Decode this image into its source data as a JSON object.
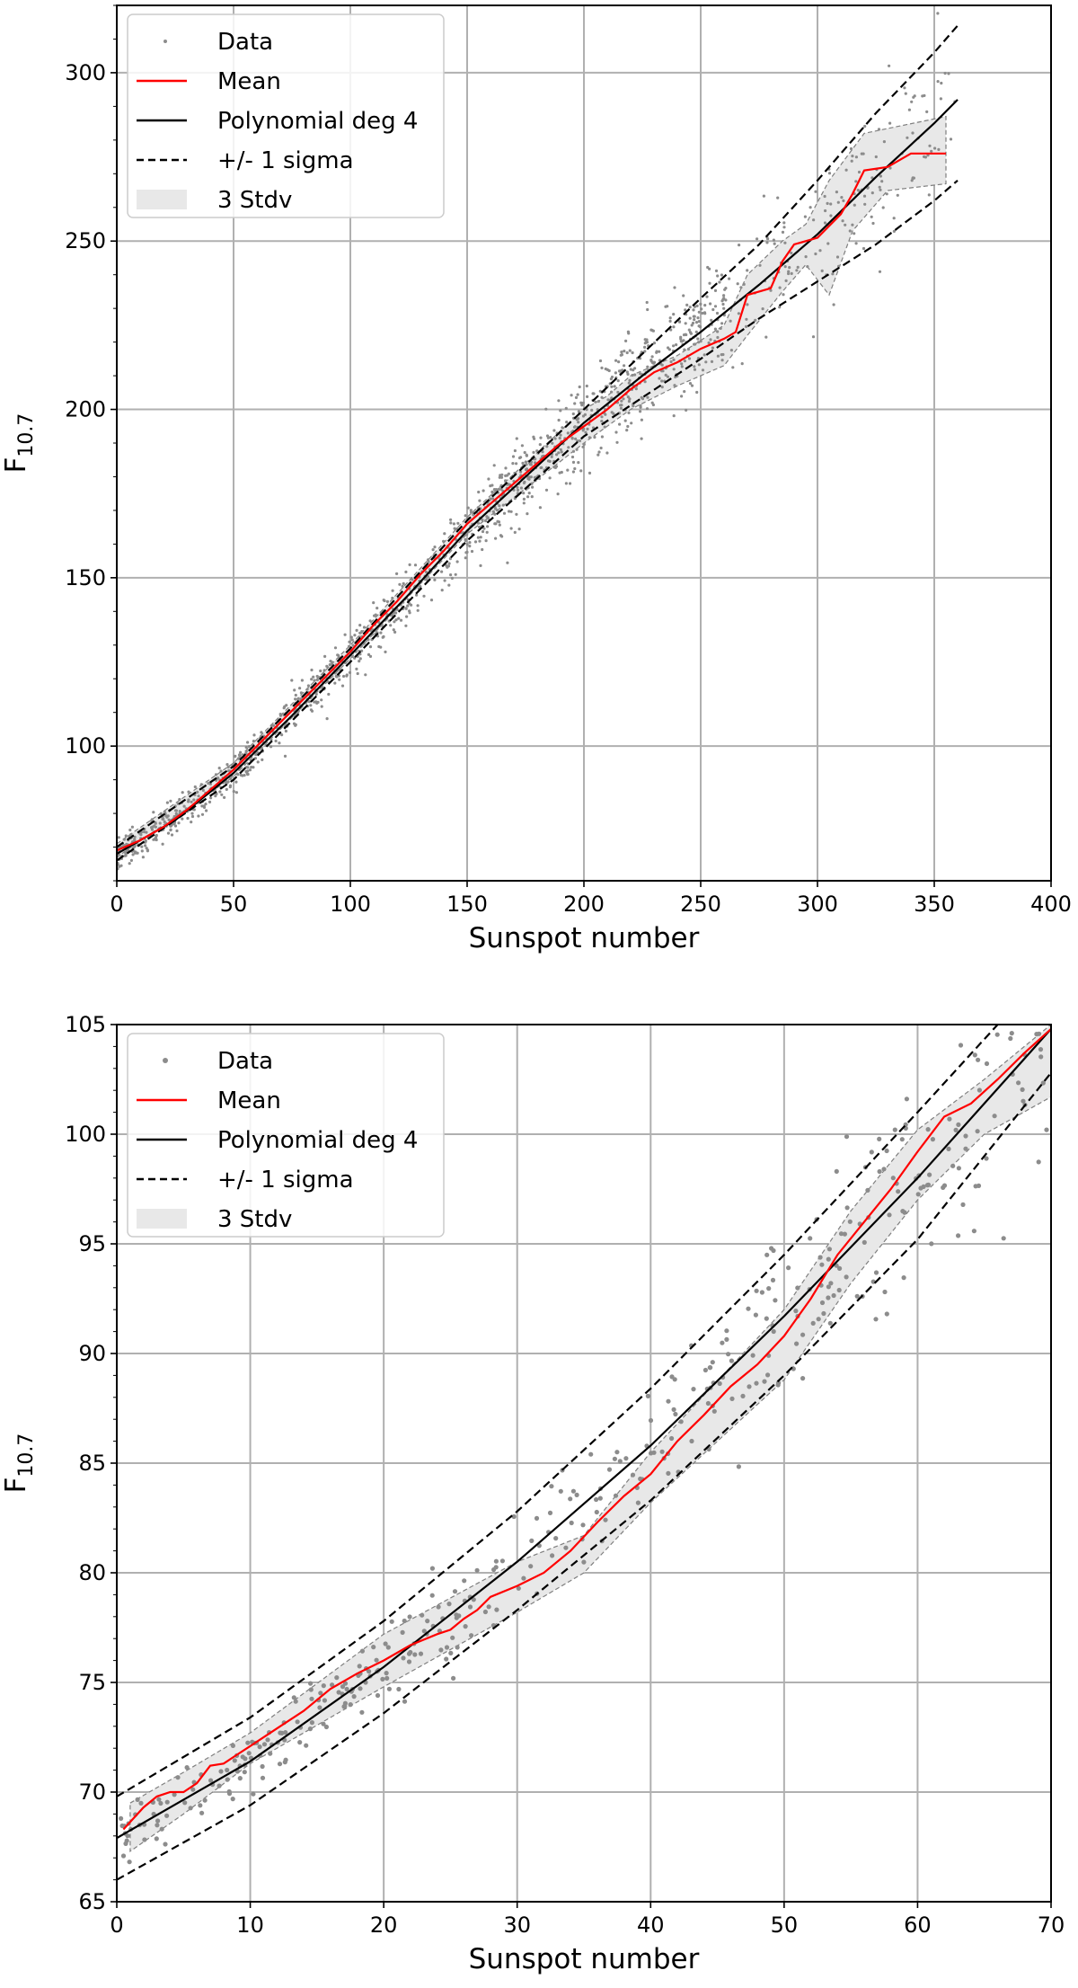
{
  "chart_data": [
    {
      "type": "scatter",
      "xlabel": "Sunspot number",
      "ylabel": "F",
      "ylabel_sub": "10.7",
      "xlim": [
        0,
        400
      ],
      "ylim": [
        60,
        320
      ],
      "xticks": [
        0,
        50,
        100,
        150,
        200,
        250,
        300,
        350,
        400
      ],
      "yticks": [
        100,
        150,
        200,
        250,
        300
      ],
      "grid": true,
      "legend_position": "top-left",
      "legend": [
        "Data",
        "Mean",
        "Polynomial deg 4",
        "+/- 1 sigma",
        "3 Stdv"
      ],
      "colors": {
        "data": "#8c8c8c",
        "mean": "#ff0000",
        "poly": "#000000",
        "sigma": "#000000",
        "band": "#e8e8e8"
      },
      "series": [
        {
          "name": "Mean",
          "points": [
            [
              0,
              69
            ],
            [
              10,
              72
            ],
            [
              20,
              76
            ],
            [
              30,
              81
            ],
            [
              40,
              87
            ],
            [
              50,
              93
            ],
            [
              60,
              100
            ],
            [
              70,
              107
            ],
            [
              80,
              114
            ],
            [
              90,
              121
            ],
            [
              100,
              128
            ],
            [
              110,
              136
            ],
            [
              120,
              143
            ],
            [
              130,
              151
            ],
            [
              140,
              158
            ],
            [
              150,
              166
            ],
            [
              160,
              172
            ],
            [
              170,
              178
            ],
            [
              180,
              184
            ],
            [
              190,
              190
            ],
            [
              200,
              195
            ],
            [
              210,
              200
            ],
            [
              220,
              206
            ],
            [
              230,
              211
            ],
            [
              240,
              214
            ],
            [
              250,
              218
            ],
            [
              260,
              221
            ],
            [
              265,
              223
            ],
            [
              270,
              234
            ],
            [
              280,
              236
            ],
            [
              285,
              244
            ],
            [
              290,
              249
            ],
            [
              300,
              251
            ],
            [
              310,
              258
            ],
            [
              315,
              264
            ],
            [
              320,
              271
            ],
            [
              330,
              272
            ],
            [
              340,
              276
            ],
            [
              355,
              276
            ]
          ]
        },
        {
          "name": "Polynomial deg 4",
          "points": [
            [
              0,
              68
            ],
            [
              25,
              78
            ],
            [
              50,
              92
            ],
            [
              75,
              109
            ],
            [
              100,
              127
            ],
            [
              125,
              145
            ],
            [
              150,
              164
            ],
            [
              175,
              180
            ],
            [
              200,
              196
            ],
            [
              225,
              210
            ],
            [
              250,
              223
            ],
            [
              275,
              237
            ],
            [
              300,
              252
            ],
            [
              325,
              269
            ],
            [
              350,
              285
            ],
            [
              360,
              292
            ]
          ]
        },
        {
          "name": "+/- 1 sigma (upper)",
          "points": [
            [
              0,
              70
            ],
            [
              50,
              94
            ],
            [
              100,
              129
            ],
            [
              150,
              167
            ],
            [
              200,
              200
            ],
            [
              250,
              233
            ],
            [
              275,
              249
            ],
            [
              300,
              268
            ],
            [
              325,
              288
            ],
            [
              350,
              306
            ],
            [
              360,
              314
            ]
          ]
        },
        {
          "name": "+/- 1 sigma (lower)",
          "points": [
            [
              0,
              66
            ],
            [
              50,
              90
            ],
            [
              100,
              125
            ],
            [
              150,
              161
            ],
            [
              200,
              192
            ],
            [
              250,
              215
            ],
            [
              275,
              227
            ],
            [
              300,
              238
            ],
            [
              325,
              249
            ],
            [
              350,
              262
            ],
            [
              360,
              268
            ]
          ]
        },
        {
          "name": "3 Stdv (upper)",
          "points": [
            [
              0,
              71
            ],
            [
              50,
              95
            ],
            [
              100,
              130
            ],
            [
              150,
              168
            ],
            [
              200,
              200
            ],
            [
              210,
              204
            ],
            [
              220,
              210
            ],
            [
              240,
              216
            ],
            [
              260,
              225
            ],
            [
              270,
              240
            ],
            [
              285,
              250
            ],
            [
              295,
              255
            ],
            [
              305,
              268
            ],
            [
              320,
              282
            ],
            [
              355,
              287
            ]
          ]
        },
        {
          "name": "3 Stdv (lower)",
          "points": [
            [
              0,
              67
            ],
            [
              50,
              91
            ],
            [
              100,
              126
            ],
            [
              150,
              163
            ],
            [
              200,
              190
            ],
            [
              220,
              200
            ],
            [
              240,
              207
            ],
            [
              260,
              213
            ],
            [
              270,
              222
            ],
            [
              285,
              235
            ],
            [
              295,
              243
            ],
            [
              305,
              234
            ],
            [
              315,
              253
            ],
            [
              330,
              265
            ],
            [
              355,
              267
            ]
          ]
        }
      ],
      "data_cloud": {
        "x_max": 360,
        "spread_low_x": 5,
        "spread_high_x": 25
      }
    },
    {
      "type": "scatter",
      "xlabel": "Sunspot number",
      "ylabel": "F",
      "ylabel_sub": "10.7",
      "xlim": [
        0,
        70
      ],
      "ylim": [
        65,
        105
      ],
      "xticks": [
        0,
        10,
        20,
        30,
        40,
        50,
        60,
        70
      ],
      "yticks": [
        65,
        70,
        75,
        80,
        85,
        90,
        95,
        100,
        105
      ],
      "grid": true,
      "legend_position": "top-left",
      "legend": [
        "Data",
        "Mean",
        "Polynomial deg 4",
        "+/- 1 sigma",
        "3 Stdv"
      ],
      "colors": {
        "data": "#8c8c8c",
        "mean": "#ff0000",
        "poly": "#000000",
        "sigma": "#000000",
        "band": "#e8e8e8"
      },
      "series": [
        {
          "name": "Mean",
          "points": [
            [
              0.5,
              68.3
            ],
            [
              2,
              69.3
            ],
            [
              3,
              69.8
            ],
            [
              4,
              70
            ],
            [
              5,
              70
            ],
            [
              6,
              70.4
            ],
            [
              7,
              71.2
            ],
            [
              8,
              71.3
            ],
            [
              9,
              71.7
            ],
            [
              10,
              72.1
            ],
            [
              12,
              72.9
            ],
            [
              14,
              73.7
            ],
            [
              16,
              74.7
            ],
            [
              18,
              75.4
            ],
            [
              20,
              76
            ],
            [
              22,
              76.7
            ],
            [
              24,
              77.2
            ],
            [
              25,
              77.4
            ],
            [
              26,
              77.9
            ],
            [
              27,
              78.3
            ],
            [
              28,
              78.9
            ],
            [
              30,
              79.4
            ],
            [
              32,
              80
            ],
            [
              34,
              81
            ],
            [
              36,
              82.3
            ],
            [
              38,
              83.5
            ],
            [
              40,
              84.5
            ],
            [
              42,
              86
            ],
            [
              44,
              87.2
            ],
            [
              46,
              88.5
            ],
            [
              48,
              89.5
            ],
            [
              50,
              90.8
            ],
            [
              52,
              92.5
            ],
            [
              54,
              94.5
            ],
            [
              56,
              96
            ],
            [
              58,
              97.5
            ],
            [
              60,
              99.2
            ],
            [
              62,
              100.8
            ],
            [
              64,
              101.4
            ],
            [
              66,
              102.5
            ],
            [
              68,
              103.7
            ],
            [
              70,
              104.8
            ]
          ]
        },
        {
          "name": "Polynomial deg 4",
          "points": [
            [
              0,
              67.9
            ],
            [
              10,
              71.4
            ],
            [
              20,
              75.7
            ],
            [
              30,
              80.5
            ],
            [
              40,
              85.8
            ],
            [
              50,
              91.7
            ],
            [
              60,
              98
            ],
            [
              70,
              104.8
            ]
          ]
        },
        {
          "name": "+/- 1 sigma (upper)",
          "points": [
            [
              0,
              69.8
            ],
            [
              10,
              73.4
            ],
            [
              20,
              77.8
            ],
            [
              30,
              82.8
            ],
            [
              40,
              88.4
            ],
            [
              50,
              94.5
            ],
            [
              60,
              101
            ],
            [
              66,
              105
            ]
          ]
        },
        {
          "name": "+/- 1 sigma (lower)",
          "points": [
            [
              0,
              66
            ],
            [
              10,
              69.4
            ],
            [
              20,
              73.6
            ],
            [
              30,
              78.3
            ],
            [
              40,
              83.3
            ],
            [
              50,
              89
            ],
            [
              60,
              95.2
            ],
            [
              70,
              102.8
            ]
          ]
        },
        {
          "name": "3 Stdv (upper)",
          "points": [
            [
              1,
              69.5
            ],
            [
              5,
              70.9
            ],
            [
              10,
              72.7
            ],
            [
              20,
              77.2
            ],
            [
              30,
              80.5
            ],
            [
              35,
              81.7
            ],
            [
              40,
              85.5
            ],
            [
              50,
              92
            ],
            [
              55,
              96.5
            ],
            [
              60,
              100.2
            ],
            [
              65,
              102.5
            ],
            [
              70,
              105
            ]
          ]
        },
        {
          "name": "3 Stdv (lower)",
          "points": [
            [
              1,
              67.3
            ],
            [
              5,
              69
            ],
            [
              10,
              71.3
            ],
            [
              20,
              74.8
            ],
            [
              30,
              78.2
            ],
            [
              35,
              80
            ],
            [
              40,
              83.2
            ],
            [
              50,
              88.8
            ],
            [
              55,
              93.2
            ],
            [
              60,
              97
            ],
            [
              65,
              100
            ],
            [
              70,
              101.7
            ]
          ]
        }
      ],
      "data_cloud": {
        "x_max": 70,
        "spread_low_x": 1.2,
        "spread_high_x": 6
      }
    }
  ]
}
